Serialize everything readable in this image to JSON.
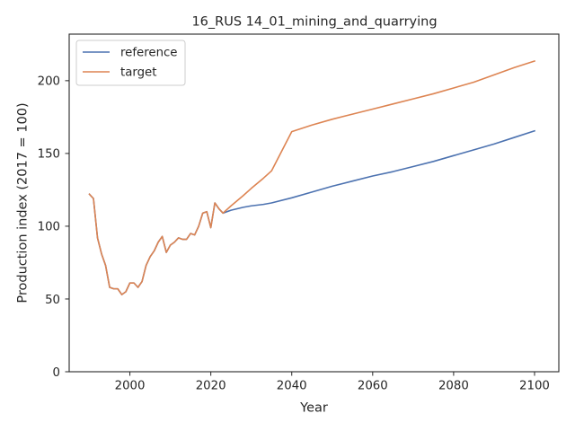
{
  "chart_data": {
    "type": "line",
    "title": "16_RUS 14_01_mining_and_quarrying",
    "xlabel": "Year",
    "ylabel": "Production index (2017 = 100)",
    "xlim": [
      1985,
      2106
    ],
    "ylim": [
      0,
      232
    ],
    "xticks": [
      2000,
      2020,
      2040,
      2060,
      2080,
      2100
    ],
    "yticks": [
      0,
      50,
      100,
      150,
      200
    ],
    "grid": false,
    "legend_position": "upper left",
    "series": [
      {
        "name": "reference",
        "color": "#4c72b0",
        "x": [
          1990,
          1991,
          1992,
          1993,
          1994,
          1995,
          1996,
          1997,
          1998,
          1999,
          2000,
          2001,
          2002,
          2003,
          2004,
          2005,
          2006,
          2007,
          2008,
          2009,
          2010,
          2011,
          2012,
          2013,
          2014,
          2015,
          2016,
          2017,
          2018,
          2019,
          2020,
          2021,
          2022,
          2023,
          2025,
          2028,
          2030,
          2033,
          2035,
          2040,
          2045,
          2050,
          2055,
          2060,
          2065,
          2070,
          2075,
          2080,
          2085,
          2090,
          2095,
          2100
        ],
        "y": [
          122,
          119,
          92,
          81,
          73,
          58,
          57,
          57,
          53,
          55,
          61,
          61,
          58,
          62,
          73,
          79,
          83,
          89,
          93,
          82,
          87,
          89,
          92,
          91,
          91,
          95,
          94,
          100,
          109,
          110,
          99,
          116,
          112,
          109,
          111,
          113,
          114,
          115,
          116,
          119.5,
          123.5,
          127.5,
          131,
          134.5,
          137.5,
          141,
          144.5,
          148.5,
          152.5,
          156.5,
          161,
          165.5
        ]
      },
      {
        "name": "target",
        "color": "#dd8452",
        "x": [
          1990,
          1991,
          1992,
          1993,
          1994,
          1995,
          1996,
          1997,
          1998,
          1999,
          2000,
          2001,
          2002,
          2003,
          2004,
          2005,
          2006,
          2007,
          2008,
          2009,
          2010,
          2011,
          2012,
          2013,
          2014,
          2015,
          2016,
          2017,
          2018,
          2019,
          2020,
          2021,
          2022,
          2023,
          2025,
          2028,
          2030,
          2033,
          2035,
          2040,
          2045,
          2050,
          2055,
          2060,
          2065,
          2070,
          2075,
          2080,
          2085,
          2090,
          2095,
          2100
        ],
        "y": [
          122,
          119,
          92,
          81,
          73,
          58,
          57,
          57,
          53,
          55,
          61,
          61,
          58,
          62,
          73,
          79,
          83,
          89,
          93,
          82,
          87,
          89,
          92,
          91,
          91,
          95,
          94,
          100,
          109,
          110,
          99,
          116,
          112,
          109,
          114,
          121,
          126,
          133,
          138,
          165,
          169.5,
          173.5,
          177,
          180.5,
          184,
          187.5,
          191,
          195,
          199,
          204,
          209,
          213.5
        ]
      }
    ]
  }
}
